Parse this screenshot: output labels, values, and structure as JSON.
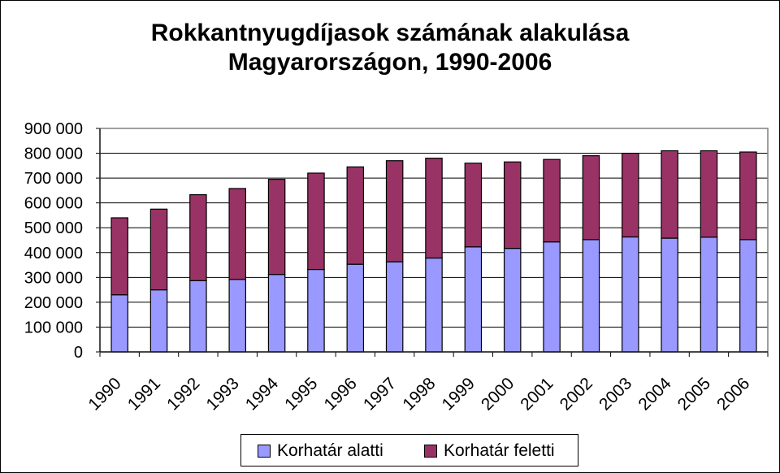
{
  "chart_data": {
    "type": "bar",
    "stacked": true,
    "title": [
      "Rokkantnyugdíjasok számának alakulása",
      "Magyarországon, 1990-2006"
    ],
    "categories": [
      "1990",
      "1991",
      "1992",
      "1993",
      "1994",
      "1995",
      "1996",
      "1997",
      "1998",
      "1999",
      "2000",
      "2001",
      "2002",
      "2003",
      "2004",
      "2005",
      "2006"
    ],
    "series": [
      {
        "name": "Korhatár alatti",
        "color": "#9999ff",
        "values": [
          230000,
          250000,
          287000,
          292000,
          312000,
          332000,
          353000,
          363000,
          378000,
          423000,
          417000,
          443000,
          452000,
          463000,
          458000,
          462000,
          452000
        ]
      },
      {
        "name": "Korhatár feletti",
        "color": "#993366",
        "values": [
          310000,
          325000,
          346000,
          366000,
          383000,
          388000,
          392000,
          407000,
          402000,
          337000,
          348000,
          332000,
          338000,
          337000,
          352000,
          348000,
          353000
        ]
      }
    ],
    "ylim": [
      0,
      900000
    ],
    "yticks": [
      "0",
      "100 000",
      "200 000",
      "300 000",
      "400 000",
      "500 000",
      "600 000",
      "700 000",
      "800 000",
      "900 000"
    ],
    "grid": true,
    "legend_position": "bottom",
    "plot_background": "#ffffff"
  }
}
